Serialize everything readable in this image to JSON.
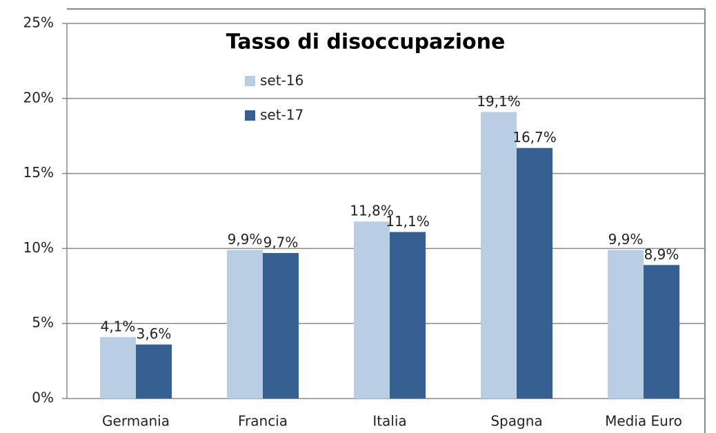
{
  "chart_data": {
    "type": "bar",
    "title": "Tasso di disoccupazione",
    "categories": [
      "Germania",
      "Francia",
      "Italia",
      "Spagna",
      "Media Euro"
    ],
    "series": [
      {
        "name": "set-16",
        "color": "#b9cde5",
        "values": [
          4.1,
          9.9,
          11.8,
          19.1,
          9.9
        ],
        "value_labels": [
          "4,1%",
          "9,9%",
          "11,8%",
          "19,1%",
          "9,9%"
        ]
      },
      {
        "name": "set-17",
        "color": "#376092",
        "values": [
          3.6,
          9.7,
          11.1,
          16.7,
          8.9
        ],
        "value_labels": [
          "3,6%",
          "9,7%",
          "11,1%",
          "16,7%",
          "8,9%"
        ]
      }
    ],
    "ylim": [
      0,
      25
    ],
    "yticks": [
      {
        "value": 0,
        "label": "0%"
      },
      {
        "value": 5,
        "label": "5%"
      },
      {
        "value": 10,
        "label": "10%"
      },
      {
        "value": 15,
        "label": "15%"
      },
      {
        "value": 20,
        "label": "20%"
      },
      {
        "value": 25,
        "label": "25%"
      }
    ],
    "grid": true,
    "legend": "top"
  }
}
